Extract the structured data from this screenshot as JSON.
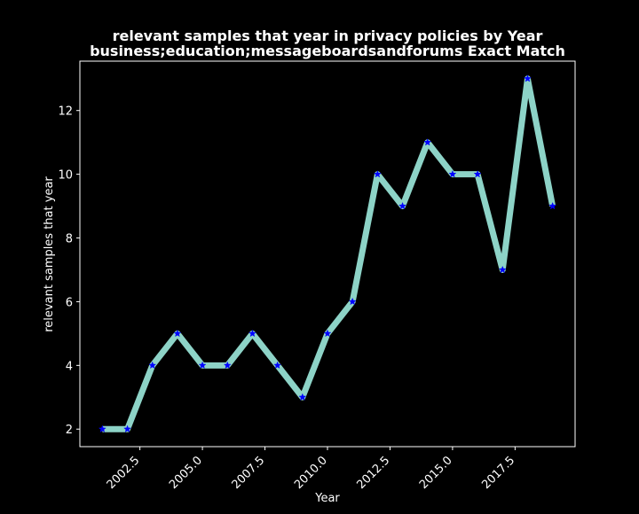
{
  "chart_data": {
    "type": "line",
    "title_line1": "relevant samples that year in privacy policies by Year",
    "title_line2": "business;education;messageboardsandforums Exact Match",
    "xlabel": "Year",
    "ylabel": "relevant samples that year",
    "xlim": [
      2000.1,
      2019.9
    ],
    "ylim": [
      1.45,
      13.55
    ],
    "x_ticks": [
      2002.5,
      2005.0,
      2007.5,
      2010.0,
      2012.5,
      2015.0,
      2017.5
    ],
    "x_tick_labels": [
      "2002.5",
      "2005.0",
      "2007.5",
      "2010.0",
      "2012.5",
      "2015.0",
      "2017.5"
    ],
    "y_ticks": [
      2,
      4,
      6,
      8,
      10,
      12
    ],
    "y_tick_labels": [
      "2",
      "4",
      "6",
      "8",
      "10",
      "12"
    ],
    "grid": false,
    "legend": "none",
    "colors": {
      "background": "#000000",
      "line": "#8dd3c7",
      "marker": "#0000ff",
      "text": "#ffffff"
    },
    "series": [
      {
        "x": [
          2001,
          2002,
          2003,
          2004,
          2005,
          2006,
          2007,
          2008,
          2009,
          2010,
          2011,
          2012,
          2013,
          2014,
          2015,
          2016,
          2017,
          2018,
          2019
        ],
        "y": [
          2,
          2,
          4,
          5,
          4,
          4,
          5,
          4,
          3,
          5,
          6,
          10,
          9,
          11,
          10,
          10,
          7,
          13,
          9
        ]
      }
    ]
  }
}
